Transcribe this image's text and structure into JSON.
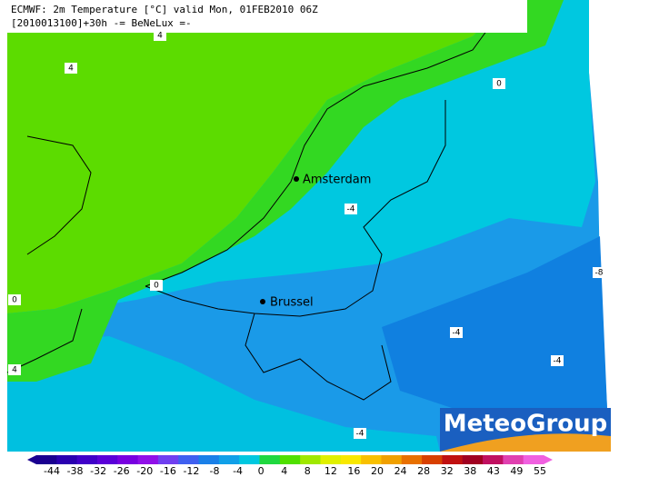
{
  "header": {
    "line1": "ECMWF: 2m Temperature [°C] valid Mon, 01FEB2010 06Z",
    "line2": "[2010013100]+30h -= BeNeLux =-"
  },
  "cities": [
    "Amsterdam",
    "Brussel"
  ],
  "contour_labels": [
    "4",
    "4",
    "0",
    "-4",
    "0",
    "0",
    "-8",
    "-4",
    "-4",
    "4",
    "-4"
  ],
  "logo": "MeteoGroup",
  "colorbar": {
    "labels": [
      -44,
      -38,
      -32,
      -26,
      -20,
      -16,
      -12,
      -8,
      -4,
      0,
      4,
      8,
      12,
      16,
      20,
      24,
      28,
      32,
      38,
      43,
      49,
      55
    ],
    "colors": [
      "#1a0090",
      "#2a00b0",
      "#4000c8",
      "#5a00d8",
      "#7800e0",
      "#9010e8",
      "#7040f0",
      "#4060f0",
      "#1a80e8",
      "#10a0e8",
      "#00c8e0",
      "#20d840",
      "#50e000",
      "#a0e800",
      "#e0f000",
      "#f8e800",
      "#f8c000",
      "#f0a000",
      "#e87000",
      "#d84000",
      "#c01010",
      "#a00020",
      "#c01060",
      "#e040b0",
      "#f060e0"
    ]
  }
}
